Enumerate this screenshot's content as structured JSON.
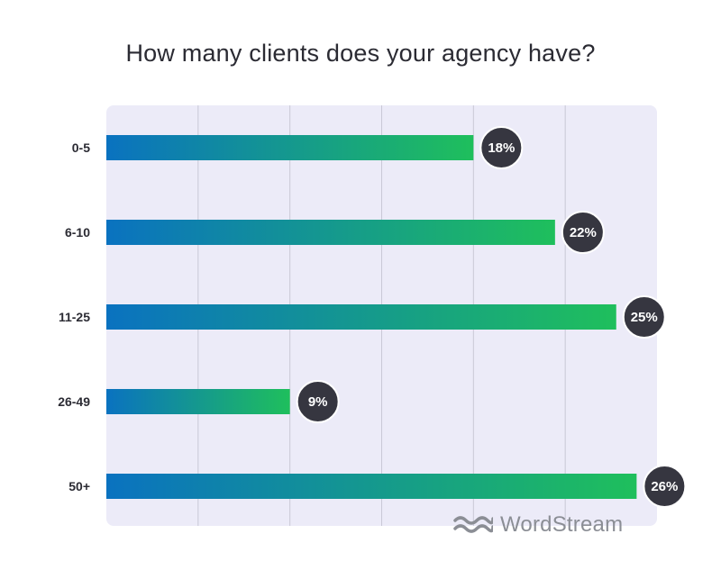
{
  "chart_data": {
    "type": "bar",
    "orientation": "horizontal",
    "title": "How many clients does your agency have?",
    "categories": [
      "0-5",
      "6-10",
      "11-25",
      "26-49",
      "50+"
    ],
    "values": [
      18,
      22,
      25,
      9,
      26
    ],
    "data_labels": [
      "18%",
      "22%",
      "25%",
      "9%",
      "26%"
    ],
    "xlim": [
      0,
      27
    ],
    "grid": true,
    "grid_lines_at": [
      4.5,
      9,
      13.5,
      18,
      22.5
    ],
    "colors": {
      "bar_start": "#0a72c0",
      "bar_end": "#1fbf5c",
      "plot_background": "#ecebf8",
      "grid": "#c9c8d6",
      "label_bubble": "#363640",
      "label_bubble_border": "#ffffff"
    }
  },
  "branding": {
    "logo_text": "WordStream",
    "logo_icon": "wave-icon",
    "logo_color": "#8b8e95"
  }
}
